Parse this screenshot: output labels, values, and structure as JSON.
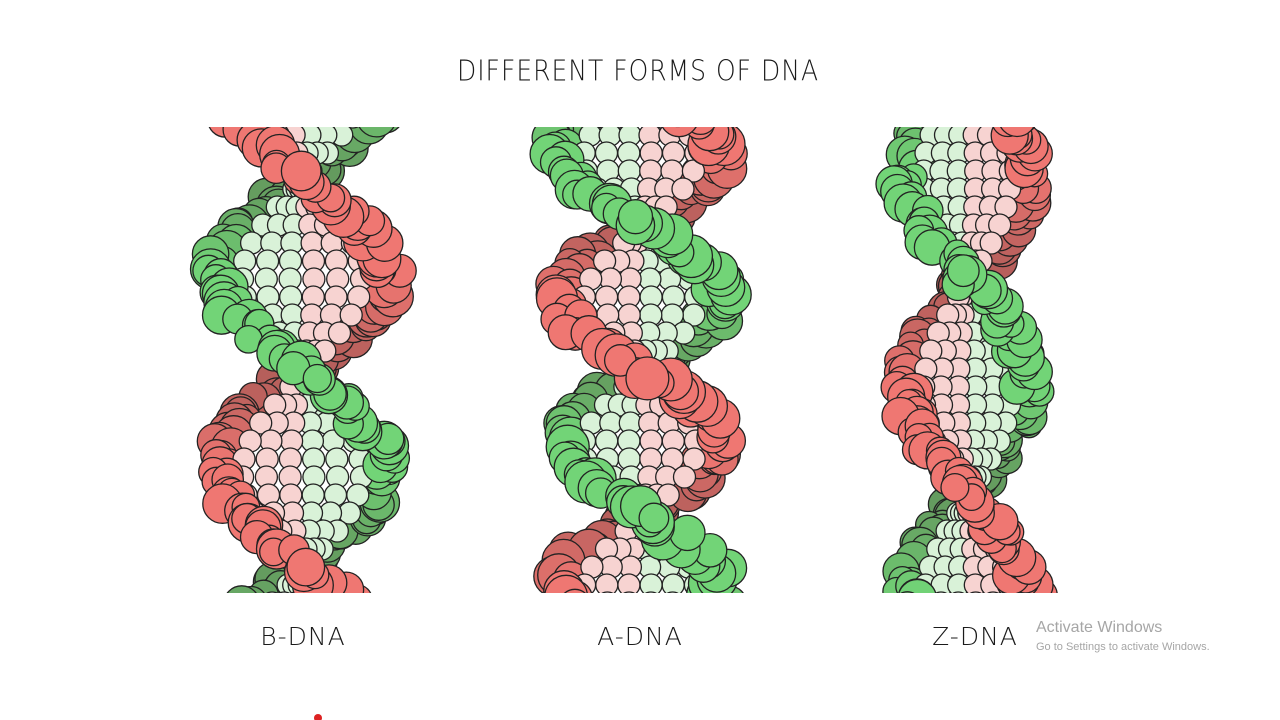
{
  "title": "DIFFERENT FORMS OF DNA",
  "panels": [
    {
      "label": "B-DNA"
    },
    {
      "label": "A-DNA"
    },
    {
      "label": "Z-DNA"
    }
  ],
  "watermark": {
    "title": "Activate Windows",
    "subtitle": "Go to Settings to activate Windows."
  }
}
